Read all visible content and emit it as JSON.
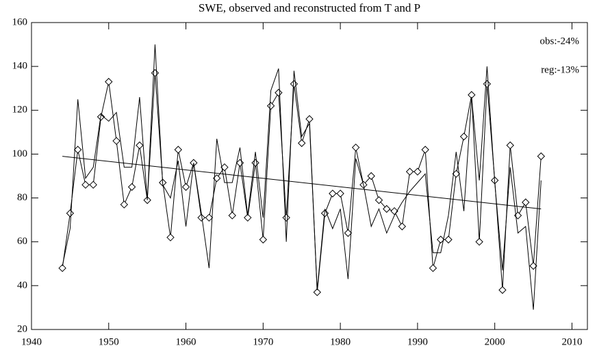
{
  "chart_data": {
    "type": "line",
    "title": "SWE, observed and reconstructed from T and P",
    "annotations": [
      "obs:-24%",
      "reg:-13%"
    ],
    "x": [
      1944,
      1945,
      1946,
      1947,
      1948,
      1949,
      1950,
      1951,
      1952,
      1953,
      1954,
      1955,
      1956,
      1957,
      1958,
      1959,
      1960,
      1961,
      1962,
      1963,
      1964,
      1965,
      1966,
      1967,
      1968,
      1969,
      1970,
      1971,
      1972,
      1973,
      1974,
      1975,
      1976,
      1977,
      1978,
      1979,
      1980,
      1981,
      1982,
      1983,
      1984,
      1985,
      1986,
      1987,
      1988,
      1989,
      1990,
      1991,
      1992,
      1993,
      1994,
      1995,
      1996,
      1997,
      1998,
      1999,
      2000,
      2001,
      2002,
      2003,
      2004,
      2005,
      2006
    ],
    "series": [
      {
        "color": "#000000",
        "marker": "diamond",
        "values": [
          48,
          73,
          102,
          86,
          86,
          117,
          133,
          106,
          77,
          85,
          104,
          79,
          137,
          87,
          62,
          102,
          85,
          96,
          71,
          71,
          89,
          94,
          72,
          96,
          71,
          96,
          61,
          122,
          128,
          71,
          132,
          105,
          116,
          37,
          73,
          82,
          82,
          64,
          103,
          86,
          90,
          79,
          75,
          74,
          67,
          92,
          92,
          102,
          48,
          61,
          61,
          91,
          108,
          127,
          60,
          132,
          88,
          38,
          104,
          72,
          78,
          49,
          99
        ]
      },
      {
        "color": "#000000",
        "values": [
          49,
          66,
          125,
          89,
          94,
          118,
          115,
          119,
          94,
          94,
          126,
          79,
          150,
          86,
          80,
          97,
          67,
          96,
          73,
          48,
          107,
          87,
          87,
          103,
          72,
          101,
          71,
          129,
          139,
          60,
          138,
          108,
          114,
          38,
          75,
          66,
          75,
          43,
          98,
          86,
          67,
          75,
          64,
          72,
          78,
          83,
          87,
          91,
          55,
          55,
          72,
          101,
          74,
          126,
          88,
          140,
          87,
          47,
          94,
          64,
          67,
          29,
          88
        ]
      }
    ],
    "trend": {
      "x": [
        1944,
        2006
      ],
      "values": [
        99,
        75
      ],
      "color": "#000000"
    },
    "xlim": [
      1940,
      2012
    ],
    "xticks": [
      1940,
      1950,
      1960,
      1970,
      1980,
      1990,
      2000,
      2010
    ],
    "ylim": [
      20,
      160
    ],
    "yticks": [
      20,
      40,
      60,
      80,
      100,
      120,
      140,
      160
    ]
  }
}
